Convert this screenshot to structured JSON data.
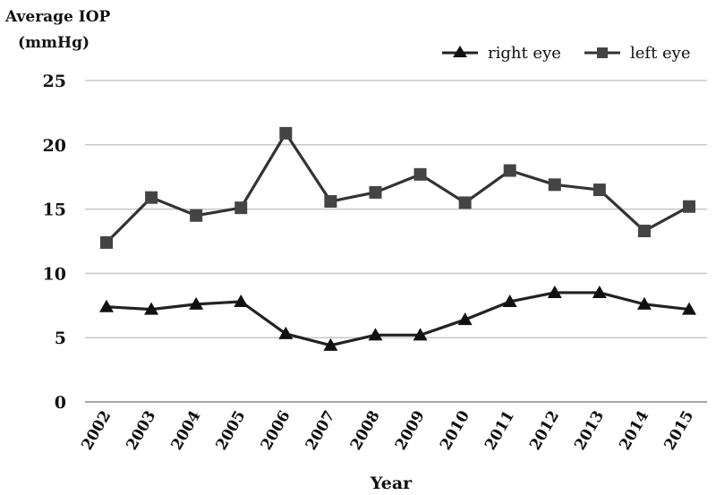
{
  "chart_data": {
    "type": "line",
    "ylabel_lines": [
      "Average IOP",
      "(mmHg)"
    ],
    "xlabel": "Year",
    "x": [
      "2002",
      "2003",
      "2004",
      "2005",
      "2006",
      "2007",
      "2008",
      "2009",
      "2010",
      "2011",
      "2012",
      "2013",
      "2014",
      "2015"
    ],
    "ylim": [
      0,
      25
    ],
    "yticks": [
      0,
      5,
      10,
      15,
      20,
      25
    ],
    "grid": true,
    "legend_position": "top-right",
    "series": [
      {
        "name": "right eye",
        "marker": "triangle",
        "color": "#222222",
        "values": [
          7.4,
          7.2,
          7.6,
          7.8,
          5.3,
          4.4,
          5.2,
          5.2,
          6.4,
          7.8,
          8.5,
          8.5,
          7.6,
          7.2
        ]
      },
      {
        "name": "left eye",
        "marker": "square",
        "color": "#333333",
        "values": [
          12.4,
          15.9,
          14.5,
          15.1,
          20.9,
          15.6,
          16.3,
          17.7,
          15.5,
          18.0,
          16.9,
          16.5,
          13.3,
          15.2
        ]
      }
    ]
  }
}
